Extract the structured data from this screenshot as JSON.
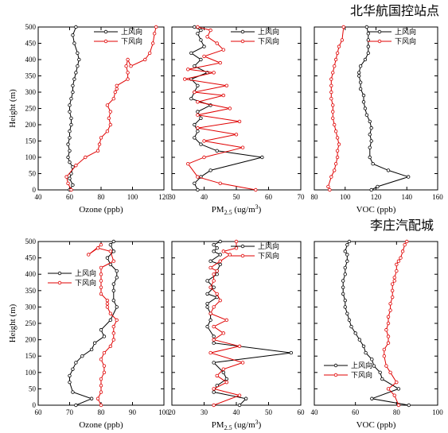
{
  "chart_data": [
    {
      "type": "line",
      "group_title": "北华航国控站点",
      "xlabel": "Ozone (ppb)",
      "ylabel": "Height (m)",
      "xlim": [
        40,
        120
      ],
      "xticks": [
        40,
        60,
        80,
        100,
        120
      ],
      "ylim": [
        0,
        500
      ],
      "yticks": [
        0,
        50,
        100,
        150,
        200,
        250,
        300,
        350,
        400,
        450,
        500
      ],
      "legend_position": "top-right",
      "series": [
        {
          "name": "上风向",
          "color": "#000000",
          "x": [
            60,
            62,
            60,
            61,
            62,
            60,
            59,
            60,
            59,
            60,
            60,
            61,
            61,
            60,
            60,
            61,
            62,
            62,
            63,
            64,
            65,
            66,
            65,
            63,
            62,
            64
          ],
          "y": [
            0,
            15,
            35,
            50,
            70,
            85,
            100,
            120,
            140,
            160,
            180,
            200,
            220,
            240,
            260,
            280,
            300,
            320,
            340,
            360,
            380,
            400,
            420,
            450,
            475,
            500
          ]
        },
        {
          "name": "下风向",
          "color": "#e00000",
          "x": [
            61,
            59,
            58,
            64,
            70,
            78,
            79,
            80,
            84,
            86,
            85,
            86,
            84,
            88,
            89,
            90,
            90,
            97,
            97,
            96,
            97,
            99,
            108,
            111,
            113,
            114,
            115
          ],
          "y": [
            0,
            20,
            40,
            75,
            100,
            120,
            140,
            160,
            180,
            200,
            220,
            240,
            260,
            280,
            300,
            310,
            320,
            340,
            360,
            380,
            400,
            380,
            400,
            420,
            450,
            480,
            500
          ]
        }
      ]
    },
    {
      "type": "line",
      "group_title": "北华航国控站点",
      "xlabel_main": "PM",
      "xlabel_sub": "2.5",
      "xlabel_unit": " (ug/m",
      "xlabel_sup": "3",
      "xlabel_end": ")",
      "xlim": [
        30,
        70
      ],
      "xticks": [
        30,
        40,
        50,
        60,
        70
      ],
      "ylim": [
        0,
        500
      ],
      "legend_position": "top-right",
      "series": [
        {
          "name": "上风向",
          "color": "#000000",
          "x": [
            38,
            37,
            39,
            42,
            58,
            44,
            39,
            37,
            38,
            37,
            39,
            38,
            42,
            36,
            37,
            38,
            36,
            41,
            37,
            39,
            36,
            40,
            39,
            38,
            39,
            37
          ],
          "y": [
            0,
            20,
            40,
            60,
            100,
            120,
            140,
            160,
            180,
            200,
            220,
            240,
            260,
            280,
            300,
            320,
            340,
            360,
            380,
            400,
            420,
            440,
            460,
            480,
            490,
            500
          ]
        },
        {
          "name": "下风向",
          "color": "#e00000",
          "x": [
            56,
            45,
            38,
            35,
            40,
            52,
            40,
            50,
            38,
            51,
            38,
            48,
            38,
            46,
            37,
            47,
            34,
            43,
            35,
            45,
            40,
            46,
            44,
            41,
            42,
            38
          ],
          "y": [
            0,
            20,
            40,
            80,
            100,
            130,
            150,
            170,
            190,
            210,
            230,
            250,
            270,
            290,
            300,
            320,
            340,
            360,
            370,
            390,
            410,
            430,
            450,
            470,
            490,
            500
          ]
        }
      ]
    },
    {
      "type": "line",
      "group_title": "北华航国控站点",
      "xlabel": "VOC (ppb)",
      "xlim": [
        80,
        160
      ],
      "xticks": [
        80,
        100,
        120,
        140,
        160
      ],
      "ylim": [
        0,
        500
      ],
      "legend_position": "top-right",
      "series": [
        {
          "name": "上风向",
          "color": "#000000",
          "x": [
            117,
            121,
            141,
            128,
            118,
            116,
            116,
            117,
            116,
            117,
            116,
            114,
            113,
            112,
            112,
            110,
            110,
            109,
            109,
            110,
            113,
            115,
            115,
            115,
            115,
            114
          ],
          "y": [
            0,
            10,
            40,
            60,
            80,
            100,
            130,
            150,
            170,
            190,
            210,
            230,
            250,
            270,
            290,
            310,
            330,
            350,
            360,
            380,
            400,
            420,
            440,
            460,
            480,
            500
          ]
        },
        {
          "name": "下风向",
          "color": "#e00000",
          "x": [
            90,
            89,
            91,
            93,
            94,
            95,
            95,
            96,
            95,
            94,
            93,
            92,
            92,
            92,
            91,
            91,
            91,
            91,
            92,
            93,
            94,
            95,
            96,
            98,
            99
          ],
          "y": [
            0,
            10,
            40,
            60,
            80,
            100,
            120,
            140,
            160,
            180,
            200,
            220,
            240,
            260,
            280,
            300,
            320,
            340,
            360,
            380,
            400,
            420,
            440,
            460,
            500
          ]
        }
      ]
    },
    {
      "type": "line",
      "group_title": "李庄汽配城",
      "xlabel": "Ozone (ppb)",
      "ylabel": "Height (m)",
      "xlim": [
        60,
        100
      ],
      "xticks": [
        60,
        70,
        80,
        90,
        100
      ],
      "ylim": [
        0,
        500
      ],
      "yticks": [
        0,
        50,
        100,
        150,
        200,
        250,
        300,
        350,
        400,
        450,
        500
      ],
      "legend_position": "top-left",
      "series": [
        {
          "name": "上风向",
          "color": "#000000",
          "x": [
            72,
            77,
            71,
            70,
            70,
            71,
            72,
            74,
            77,
            78,
            81,
            80,
            83,
            85,
            84,
            84,
            84,
            85,
            85,
            83,
            82,
            84,
            83,
            84
          ],
          "y": [
            0,
            20,
            40,
            70,
            90,
            110,
            130,
            150,
            170,
            190,
            210,
            230,
            260,
            300,
            320,
            350,
            370,
            390,
            410,
            430,
            450,
            470,
            490,
            500
          ]
        },
        {
          "name": "下风向",
          "color": "#e00000",
          "x": [
            80,
            79,
            80,
            80,
            80,
            81,
            81,
            80,
            81,
            83,
            84,
            84,
            84,
            85,
            83,
            82,
            82,
            82,
            80,
            80,
            80,
            80,
            80,
            84,
            83,
            79,
            76,
            80
          ],
          "y": [
            0,
            20,
            40,
            60,
            80,
            100,
            120,
            140,
            160,
            180,
            200,
            220,
            240,
            260,
            280,
            300,
            310,
            320,
            340,
            360,
            380,
            400,
            420,
            440,
            470,
            480,
            460,
            490
          ]
        }
      ]
    },
    {
      "type": "line",
      "group_title": "李庄汽配城",
      "xlabel_main": "PM",
      "xlabel_sub": "2.5",
      "xlabel_unit": " (ug/m",
      "xlabel_sup": "3",
      "xlabel_end": ")",
      "xlim": [
        20,
        60
      ],
      "xticks": [
        20,
        30,
        40,
        50,
        60
      ],
      "ylim": [
        0,
        500
      ],
      "legend_position": "top-right",
      "series": [
        {
          "name": "上风向",
          "color": "#000000",
          "x": [
            41,
            43,
            33,
            34,
            37,
            36,
            33,
            57,
            33,
            33,
            31,
            32,
            32,
            31,
            31,
            34,
            31,
            33,
            31,
            34,
            34,
            35,
            32,
            35,
            33,
            34,
            33,
            35
          ],
          "y": [
            0,
            20,
            40,
            60,
            80,
            100,
            130,
            160,
            190,
            210,
            240,
            260,
            280,
            300,
            310,
            330,
            340,
            360,
            380,
            400,
            410,
            430,
            440,
            460,
            470,
            480,
            490,
            500
          ]
        },
        {
          "name": "下风向",
          "color": "#e00000",
          "x": [
            33,
            41,
            33,
            37,
            34,
            36,
            42,
            32,
            41,
            33,
            36,
            33,
            37,
            32,
            33,
            35,
            34,
            32,
            33,
            33,
            34,
            32,
            35,
            38,
            36,
            40,
            40
          ],
          "y": [
            0,
            30,
            50,
            70,
            90,
            110,
            130,
            160,
            180,
            200,
            220,
            240,
            260,
            280,
            300,
            320,
            340,
            360,
            380,
            400,
            410,
            420,
            440,
            460,
            470,
            480,
            500
          ]
        }
      ]
    },
    {
      "type": "line",
      "group_title": "李庄汽配城",
      "xlabel": "VOC (ppb)",
      "xlim": [
        40,
        100
      ],
      "xticks": [
        40,
        60,
        80,
        100
      ],
      "ylim": [
        0,
        500
      ],
      "legend_position": "bottom-left",
      "series": [
        {
          "name": "上风向",
          "color": "#000000",
          "x": [
            86,
            68,
            81,
            73,
            72,
            69,
            68,
            65,
            64,
            62,
            60,
            58,
            57,
            56,
            55,
            55,
            54,
            54,
            54,
            55,
            55,
            56,
            56,
            55,
            56,
            57
          ],
          "y": [
            0,
            20,
            50,
            80,
            100,
            120,
            140,
            160,
            180,
            200,
            220,
            240,
            260,
            280,
            300,
            320,
            340,
            360,
            380,
            400,
            420,
            440,
            460,
            470,
            490,
            500
          ]
        },
        {
          "name": "下风向",
          "color": "#e00000",
          "x": [
            81,
            79,
            76,
            80,
            77,
            75,
            74,
            74,
            76,
            76,
            75,
            76,
            76,
            77,
            77,
            78,
            78,
            78,
            79,
            79,
            80,
            80,
            81,
            82,
            83,
            84,
            85
          ],
          "y": [
            0,
            30,
            50,
            70,
            100,
            120,
            150,
            170,
            190,
            210,
            230,
            250,
            270,
            290,
            310,
            330,
            350,
            370,
            380,
            390,
            410,
            430,
            440,
            450,
            470,
            490,
            500
          ]
        }
      ]
    }
  ]
}
